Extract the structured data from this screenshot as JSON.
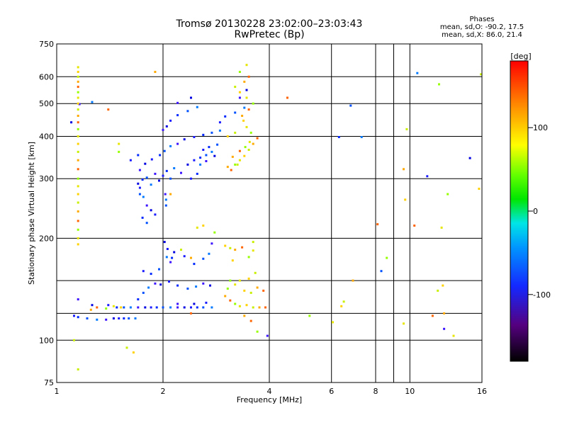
{
  "chart_data": {
    "type": "scatter",
    "title": "Tromsø 20130228 23:02:00–23:03:43",
    "subtitle": "RwPretec (Bp)",
    "xlabel": "Frequency [MHz]",
    "ylabel": "Stationary phase Virtual Height [km]",
    "x_scale": "log",
    "y_scale": "log",
    "xlim": [
      1,
      16
    ],
    "ylim": [
      75,
      750
    ],
    "x_ticks": [
      1,
      2,
      4,
      6,
      8,
      10,
      16
    ],
    "x_ticks_minor": [
      9
    ],
    "y_ticks": [
      75,
      100,
      200,
      300,
      400,
      500,
      600,
      750
    ],
    "y_ticks_extra": [
      120,
      150
    ],
    "grid": true,
    "legend": {
      "title": "Phases",
      "lines": [
        "mean, sd,O: -90.2, 17.5",
        "mean, sd,X:  86.0, 21.4"
      ],
      "position": "top-right"
    },
    "colorbar": {
      "label": "[deg]",
      "range": [
        -180,
        180
      ],
      "ticks": [
        -100,
        0,
        100
      ]
    },
    "series": [
      {
        "mode": "O",
        "points": [
          [
            1.12,
            118
          ],
          [
            1.15,
            117
          ],
          [
            1.22,
            116
          ],
          [
            1.3,
            115
          ],
          [
            1.38,
            115
          ],
          [
            1.45,
            116
          ],
          [
            1.5,
            116
          ],
          [
            1.55,
            116
          ],
          [
            1.6,
            116
          ],
          [
            1.67,
            116
          ],
          [
            1.15,
            132
          ],
          [
            1.26,
            127
          ],
          [
            1.4,
            127
          ],
          [
            1.48,
            125
          ],
          [
            1.55,
            125
          ],
          [
            1.62,
            125
          ],
          [
            1.7,
            125
          ],
          [
            1.78,
            125
          ],
          [
            1.85,
            125
          ],
          [
            1.92,
            125
          ],
          [
            2.0,
            125
          ],
          [
            2.1,
            125
          ],
          [
            2.2,
            125
          ],
          [
            2.3,
            125
          ],
          [
            2.4,
            125
          ],
          [
            2.5,
            125
          ],
          [
            2.6,
            125
          ],
          [
            2.75,
            125
          ],
          [
            2.2,
            128
          ],
          [
            2.45,
            128
          ],
          [
            2.65,
            129
          ],
          [
            1.7,
            132
          ],
          [
            1.76,
            138
          ],
          [
            1.82,
            143
          ],
          [
            1.9,
            147
          ],
          [
            1.97,
            146
          ],
          [
            2.08,
            149
          ],
          [
            2.2,
            145
          ],
          [
            2.35,
            142
          ],
          [
            2.48,
            144
          ],
          [
            2.6,
            147
          ],
          [
            2.72,
            145
          ],
          [
            1.76,
            160
          ],
          [
            1.85,
            157
          ],
          [
            1.95,
            162
          ],
          [
            2.05,
            176
          ],
          [
            2.1,
            170
          ],
          [
            2.15,
            182
          ],
          [
            2.3,
            177
          ],
          [
            2.45,
            168
          ],
          [
            2.6,
            174
          ],
          [
            2.7,
            180
          ],
          [
            2.75,
            193
          ],
          [
            2.02,
            195
          ],
          [
            2.06,
            186
          ],
          [
            2.12,
            175
          ],
          [
            2.04,
            250
          ],
          [
            2.04,
            260
          ],
          [
            2.03,
            270
          ],
          [
            1.7,
            290
          ],
          [
            1.72,
            282
          ],
          [
            1.75,
            298
          ],
          [
            1.8,
            302
          ],
          [
            1.85,
            288
          ],
          [
            1.9,
            310
          ],
          [
            1.95,
            296
          ],
          [
            2.0,
            306
          ],
          [
            2.05,
            316
          ],
          [
            2.1,
            300
          ],
          [
            2.15,
            322
          ],
          [
            2.25,
            312
          ],
          [
            2.35,
            330
          ],
          [
            2.45,
            340
          ],
          [
            2.55,
            346
          ],
          [
            2.65,
            352
          ],
          [
            2.75,
            360
          ],
          [
            1.72,
            318
          ],
          [
            1.78,
            332
          ],
          [
            1.86,
            342
          ],
          [
            1.96,
            352
          ],
          [
            2.02,
            362
          ],
          [
            2.1,
            374
          ],
          [
            2.2,
            380
          ],
          [
            2.3,
            392
          ],
          [
            2.45,
            398
          ],
          [
            2.6,
            404
          ],
          [
            2.75,
            410
          ],
          [
            2.9,
            416
          ],
          [
            2.0,
            418
          ],
          [
            2.05,
            428
          ],
          [
            2.1,
            445
          ],
          [
            2.2,
            462
          ],
          [
            2.35,
            475
          ],
          [
            2.5,
            488
          ],
          [
            2.2,
            502
          ],
          [
            2.4,
            520
          ],
          [
            2.9,
            440
          ],
          [
            3.0,
            458
          ],
          [
            3.2,
            470
          ],
          [
            3.4,
            486
          ],
          [
            3.3,
            520
          ],
          [
            3.45,
            548
          ],
          [
            1.62,
            340
          ],
          [
            1.7,
            352
          ],
          [
            1.72,
            270
          ],
          [
            1.76,
            265
          ],
          [
            1.8,
            250
          ],
          [
            1.85,
            242
          ],
          [
            1.9,
            235
          ],
          [
            1.75,
            230
          ],
          [
            1.8,
            222
          ],
          [
            1.26,
            505
          ],
          [
            1.16,
            498
          ],
          [
            1.1,
            440
          ],
          [
            2.6,
            365
          ],
          [
            2.7,
            372
          ],
          [
            2.85,
            378
          ],
          [
            2.55,
            330
          ],
          [
            2.65,
            338
          ],
          [
            2.8,
            350
          ],
          [
            2.4,
            300
          ],
          [
            2.5,
            310
          ],
          [
            8.3,
            160
          ],
          [
            10.5,
            615
          ],
          [
            12.5,
            108
          ],
          [
            14.8,
            345
          ],
          [
            11.2,
            305
          ],
          [
            6.3,
            398
          ],
          [
            6.8,
            493
          ],
          [
            7.3,
            398
          ],
          [
            3.95,
            103
          ]
        ]
      },
      {
        "mode": "X",
        "points": [
          [
            1.15,
            640
          ],
          [
            1.15,
            620
          ],
          [
            1.15,
            600
          ],
          [
            1.15,
            580
          ],
          [
            1.15,
            560
          ],
          [
            1.15,
            540
          ],
          [
            1.15,
            520
          ],
          [
            1.15,
            500
          ],
          [
            1.15,
            480
          ],
          [
            1.15,
            460
          ],
          [
            1.15,
            440
          ],
          [
            1.15,
            420
          ],
          [
            1.15,
            400
          ],
          [
            1.15,
            380
          ],
          [
            1.15,
            360
          ],
          [
            1.15,
            340
          ],
          [
            1.15,
            320
          ],
          [
            1.15,
            300
          ],
          [
            1.15,
            285
          ],
          [
            1.15,
            270
          ],
          [
            1.15,
            255
          ],
          [
            1.15,
            240
          ],
          [
            1.15,
            225
          ],
          [
            1.15,
            212
          ],
          [
            1.15,
            200
          ],
          [
            1.15,
            192
          ],
          [
            1.15,
            82
          ],
          [
            1.25,
            123
          ],
          [
            1.3,
            125
          ],
          [
            1.38,
            124
          ],
          [
            1.45,
            126
          ],
          [
            1.52,
            125
          ],
          [
            1.12,
            100
          ],
          [
            3.05,
            325
          ],
          [
            3.12,
            318
          ],
          [
            3.2,
            330
          ],
          [
            3.3,
            340
          ],
          [
            3.4,
            350
          ],
          [
            3.5,
            365
          ],
          [
            3.6,
            380
          ],
          [
            3.7,
            395
          ],
          [
            3.55,
            410
          ],
          [
            3.45,
            426
          ],
          [
            3.38,
            445
          ],
          [
            3.25,
            330
          ],
          [
            3.15,
            348
          ],
          [
            3.3,
            362
          ],
          [
            3.42,
            372
          ],
          [
            3.52,
            385
          ],
          [
            3.05,
            400
          ],
          [
            3.2,
            410
          ],
          [
            3.35,
            460
          ],
          [
            3.5,
            480
          ],
          [
            3.6,
            500
          ],
          [
            3.45,
            520
          ],
          [
            3.3,
            540
          ],
          [
            3.2,
            560
          ],
          [
            3.4,
            580
          ],
          [
            3.5,
            600
          ],
          [
            3.3,
            620
          ],
          [
            3.45,
            650
          ],
          [
            3.0,
            190
          ],
          [
            3.1,
            187
          ],
          [
            3.2,
            185
          ],
          [
            3.35,
            188
          ],
          [
            3.5,
            176
          ],
          [
            3.6,
            184
          ],
          [
            3.15,
            172
          ],
          [
            3.6,
            195
          ],
          [
            3.0,
            135
          ],
          [
            3.1,
            131
          ],
          [
            3.2,
            128
          ],
          [
            3.3,
            126
          ],
          [
            3.45,
            127
          ],
          [
            3.6,
            125
          ],
          [
            3.75,
            125
          ],
          [
            3.9,
            125
          ],
          [
            3.05,
            142
          ],
          [
            3.2,
            146
          ],
          [
            3.4,
            140
          ],
          [
            3.55,
            138
          ],
          [
            3.7,
            143
          ],
          [
            3.85,
            140
          ],
          [
            3.1,
            150
          ],
          [
            3.3,
            150
          ],
          [
            3.5,
            152
          ],
          [
            3.65,
            158
          ],
          [
            3.4,
            118
          ],
          [
            3.55,
            114
          ],
          [
            3.7,
            106
          ],
          [
            2.5,
            215
          ],
          [
            2.6,
            218
          ],
          [
            2.25,
            185
          ],
          [
            2.4,
            175
          ],
          [
            4.5,
            520
          ],
          [
            5.2,
            118
          ],
          [
            6.05,
            113
          ],
          [
            6.4,
            126
          ],
          [
            6.5,
            130
          ],
          [
            6.9,
            150
          ],
          [
            8.1,
            220
          ],
          [
            8.6,
            175
          ],
          [
            9.6,
            112
          ],
          [
            9.7,
            260
          ],
          [
            9.8,
            420
          ],
          [
            9.6,
            320
          ],
          [
            10.3,
            218
          ],
          [
            12.1,
            570
          ],
          [
            12.3,
            215
          ],
          [
            12.4,
            145
          ],
          [
            12.0,
            140
          ],
          [
            12.5,
            120
          ],
          [
            11.6,
            118
          ],
          [
            12.8,
            270
          ],
          [
            13.3,
            103
          ],
          [
            15.7,
            280
          ],
          [
            15.9,
            610
          ],
          [
            1.9,
            620
          ],
          [
            1.4,
            480
          ],
          [
            1.5,
            360
          ],
          [
            1.5,
            380
          ],
          [
            1.65,
            92
          ],
          [
            1.58,
            95
          ],
          [
            2.1,
            270
          ],
          [
            2.4,
            120
          ],
          [
            2.8,
            208
          ]
        ]
      }
    ]
  }
}
